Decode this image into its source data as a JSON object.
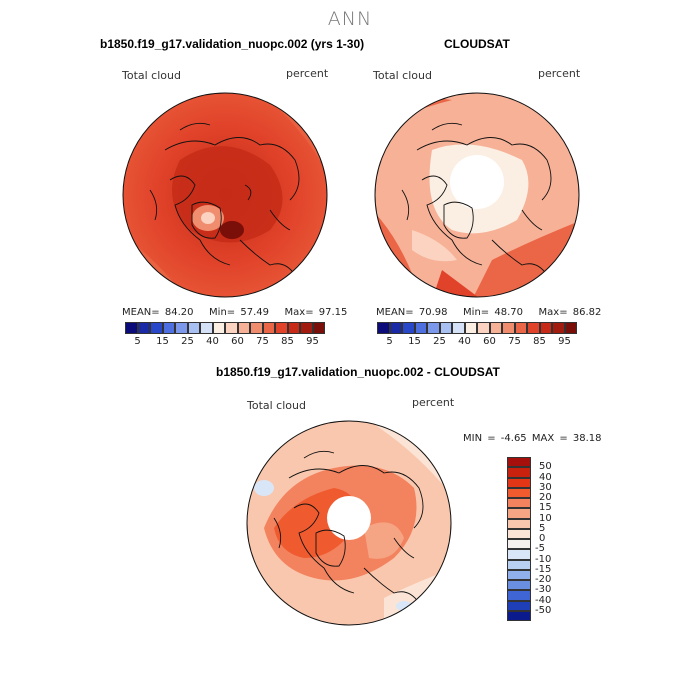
{
  "title": "ANN",
  "panels": {
    "model": {
      "title": "b1850.f19_g17.validation_nuopc.002 (yrs 1-30)",
      "left_label": "Total cloud",
      "right_label": "percent",
      "stats": {
        "mean_label": "MEAN=",
        "mean": "84.20",
        "min_label": "Min=",
        "min": "57.49",
        "max_label": "Max=",
        "max": "97.15"
      }
    },
    "obs": {
      "title": "CLOUDSAT",
      "left_label": "Total cloud",
      "right_label": "percent",
      "stats": {
        "mean_label": "MEAN=",
        "mean": "70.98",
        "min_label": "Min=",
        "min": "48.70",
        "max_label": "Max=",
        "max": "86.82"
      }
    },
    "diff": {
      "title": "b1850.f19_g17.validation_nuopc.002 - CLOUDSAT",
      "left_label": "Total cloud",
      "right_label": "percent",
      "minmax": "MIN =   -4.65 MAX =   38.18"
    }
  },
  "colorbar_abs": {
    "colors": [
      "#0b0b7a",
      "#1a2aa6",
      "#2848c9",
      "#4d6fdf",
      "#7b98ea",
      "#a9c0f2",
      "#d4e1f7",
      "#fbeee2",
      "#fbd3c0",
      "#f6b197",
      "#f08d6e",
      "#ea6646",
      "#e1432a",
      "#c72b17",
      "#a11b0f",
      "#7a0e08"
    ],
    "tick_labels": [
      "5",
      "15",
      "25",
      "40",
      "60",
      "75",
      "85",
      "95"
    ]
  },
  "colorbar_diff": {
    "colors": [
      "#a50f0c",
      "#c8210d",
      "#e33616",
      "#ef5a2f",
      "#f3825e",
      "#f6a584",
      "#f9c7ad",
      "#fbe4d6",
      "#f4f1ee",
      "#d9e6f7",
      "#b8cff2",
      "#8fb0ea",
      "#6a8fe0",
      "#3f64d4",
      "#1f3fb9",
      "#0b1a8c"
    ],
    "tick_labels": [
      "50",
      "40",
      "30",
      "20",
      "15",
      "10",
      "5",
      "0",
      "-5",
      "-10",
      "-15",
      "-20",
      "-30",
      "-40",
      "-50"
    ]
  },
  "chart_data": {
    "type": "polar-contour-map",
    "region": "Northern Hemisphere polar stereographic",
    "season": "ANN",
    "variable": "Total cloud",
    "units": "percent",
    "maps": [
      {
        "name": "model",
        "mean": 84.2,
        "min": 57.49,
        "max": 97.15
      },
      {
        "name": "CLOUDSAT",
        "mean": 70.98,
        "min": 48.7,
        "max": 86.82
      },
      {
        "name": "model - CLOUDSAT",
        "min": -4.65,
        "max": 38.18
      }
    ],
    "levels_abs": [
      5,
      15,
      25,
      40,
      60,
      75,
      85,
      95
    ],
    "levels_diff": [
      -50,
      -40,
      -30,
      -20,
      -15,
      -10,
      -5,
      0,
      5,
      10,
      15,
      20,
      30,
      40,
      50
    ]
  }
}
